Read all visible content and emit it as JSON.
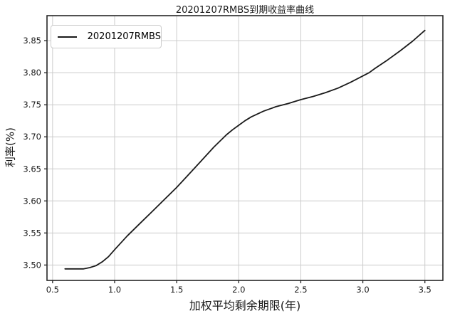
{
  "figure": {
    "background": "#ffffff"
  },
  "legend": {
    "label": "20201207RMBS"
  },
  "colors": {
    "line": "#1a1a1a",
    "grid": "#cccccc",
    "spine": "#262626",
    "tick_label": "#1a1a1a",
    "legend_border": "#cccccc",
    "background": "#ffffff"
  },
  "chart_data": {
    "type": "line",
    "title": "20201207RMBS到期收益率曲线",
    "xlabel": "加权平均剩余期限(年)",
    "ylabel": "利率(%)",
    "grid": true,
    "legend_position": "upper left",
    "xlim": [
      0.455,
      3.645
    ],
    "ylim": [
      3.476,
      3.889
    ],
    "xticks": [
      0.5,
      1.0,
      1.5,
      2.0,
      2.5,
      3.0,
      3.5
    ],
    "yticks": [
      3.5,
      3.55,
      3.6,
      3.65,
      3.7,
      3.75,
      3.8,
      3.85
    ],
    "series": [
      {
        "name": "20201207RMBS",
        "color": "#1a1a1a",
        "points": [
          [
            0.6,
            3.494
          ],
          [
            0.65,
            3.494
          ],
          [
            0.7,
            3.494
          ],
          [
            0.75,
            3.494
          ],
          [
            0.8,
            3.496
          ],
          [
            0.85,
            3.499
          ],
          [
            0.9,
            3.505
          ],
          [
            0.95,
            3.513
          ],
          [
            1.0,
            3.524
          ],
          [
            1.1,
            3.545
          ],
          [
            1.2,
            3.564
          ],
          [
            1.3,
            3.583
          ],
          [
            1.4,
            3.602
          ],
          [
            1.5,
            3.621
          ],
          [
            1.6,
            3.642
          ],
          [
            1.7,
            3.663
          ],
          [
            1.8,
            3.684
          ],
          [
            1.9,
            3.703
          ],
          [
            1.95,
            3.711
          ],
          [
            2.0,
            3.718
          ],
          [
            2.05,
            3.725
          ],
          [
            2.1,
            3.731
          ],
          [
            2.2,
            3.74
          ],
          [
            2.3,
            3.747
          ],
          [
            2.4,
            3.752
          ],
          [
            2.5,
            3.758
          ],
          [
            2.6,
            3.763
          ],
          [
            2.7,
            3.769
          ],
          [
            2.8,
            3.776
          ],
          [
            2.9,
            3.785
          ],
          [
            3.0,
            3.795
          ],
          [
            3.05,
            3.8
          ],
          [
            3.1,
            3.807
          ],
          [
            3.2,
            3.82
          ],
          [
            3.3,
            3.834
          ],
          [
            3.4,
            3.849
          ],
          [
            3.5,
            3.866
          ]
        ]
      }
    ]
  }
}
